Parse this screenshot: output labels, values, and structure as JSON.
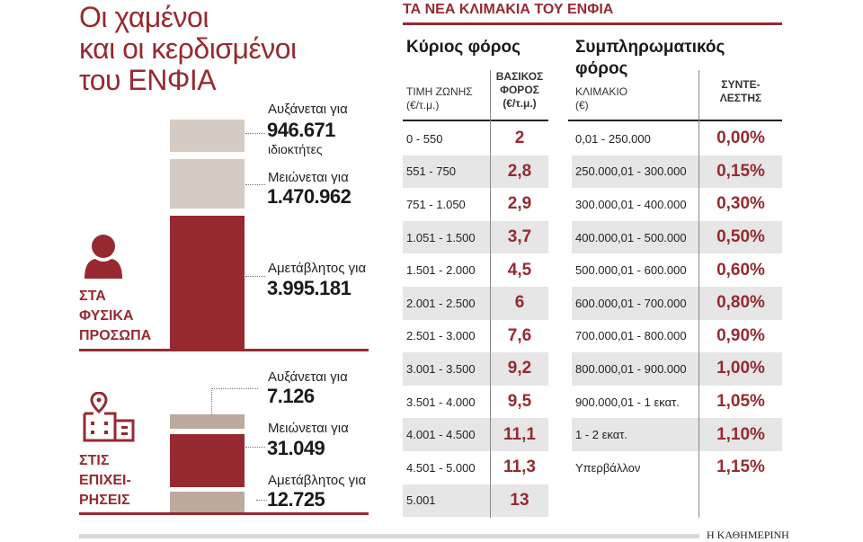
{
  "title": [
    "Οι χαμένοι",
    "και οι κερδισμένοι",
    "του ΕΝΦΙΑ"
  ],
  "colors": {
    "accent": "#962a30",
    "tan": "#d6cbc2",
    "tan_dark": "#bcaa9e"
  },
  "individuals": {
    "group_label": [
      "ΣΤΑ",
      "ΦΥΣΙΚΑ",
      "ΠΡΟΣΩΠΑ"
    ],
    "icon": "person-icon",
    "items": [
      {
        "label": "Αυξάνεται για",
        "value": "946.671",
        "unit": "ιδιοκτήτες"
      },
      {
        "label": "Μειώνεται για",
        "value": "1.470.962"
      },
      {
        "label": "Αμετάβλητος για",
        "value": "3.995.181"
      }
    ]
  },
  "businesses": {
    "group_label": [
      "ΣΤΙΣ",
      "ΕΠΙΧΕΙ-",
      "ΡΗΣΕΙΣ"
    ],
    "icon": "building-location-icon",
    "items": [
      {
        "label": "Αυξάνεται για",
        "value": "7.126"
      },
      {
        "label": "Μειώνεται για",
        "value": "31.049"
      },
      {
        "label": "Αμετάβλητος για",
        "value": "12.725"
      }
    ]
  },
  "brackets": {
    "section_title": "ΤΑ ΝΕΑ ΚΛΙΜΑΚΙΑ ΤΟΥ ΕΝΦΙΑ",
    "main_tax": {
      "title": "Κύριος φόρος",
      "col1": [
        "ΤΙΜΗ ΖΩΝΗΣ",
        "(€/τ.μ.)"
      ],
      "col2": [
        "ΒΑΣΙΚΟΣ",
        "ΦΟΡΟΣ",
        "(€/τ.μ.)"
      ],
      "rows": [
        [
          "0 - 550",
          "2"
        ],
        [
          "551 - 750",
          "2,8"
        ],
        [
          "751 - 1.050",
          "2,9"
        ],
        [
          "1.051 - 1.500",
          "3,7"
        ],
        [
          "1.501 - 2.000",
          "4,5"
        ],
        [
          "2.001 - 2.500",
          "6"
        ],
        [
          "2.501 - 3.000",
          "7,6"
        ],
        [
          "3.001 - 3.500",
          "9,2"
        ],
        [
          "3.501 - 4.000",
          "9,5"
        ],
        [
          "4.001 - 4.500",
          "11,1"
        ],
        [
          "4.501 - 5.000",
          "11,3"
        ],
        [
          "5.001",
          "13"
        ]
      ]
    },
    "supplementary_tax": {
      "title": [
        "Συμπληρωματικός",
        "φόρος"
      ],
      "col1": [
        "ΚΛΙΜΑΚΙΟ",
        "(€)"
      ],
      "col2": [
        "ΣΥΝΤΕ-",
        "ΛΕΣΤΗΣ"
      ],
      "rows": [
        [
          "0,01 - 250.000",
          "0,00%"
        ],
        [
          "250.000,01 - 300.000",
          "0,15%"
        ],
        [
          "300.000,01 - 400.000",
          "0,30%"
        ],
        [
          "400.000,01 - 500.000",
          "0,50%"
        ],
        [
          "500.000,01 - 600.000",
          "0,60%"
        ],
        [
          "600.000,01 - 700.000",
          "0,80%"
        ],
        [
          "700.000,01 - 800.000",
          "0,90%"
        ],
        [
          "800.000,01 - 900.000",
          "1,00%"
        ],
        [
          "900.000,01 - 1 εκατ.",
          "1,05%"
        ],
        [
          "1 - 2 εκατ.",
          "1,10%"
        ],
        [
          "Υπερβάλλον",
          "1,15%"
        ]
      ]
    }
  },
  "footer": {
    "source": "Η ΚΑΘΗΜΕΡΙΝΗ"
  },
  "chart_data": [
    {
      "type": "bar",
      "stacked": true,
      "categories": [
        "Αυξάνεται για",
        "Μειώνεται για",
        "Αμετάβλητος για"
      ],
      "values": [
        946671,
        1470962,
        3995181
      ],
      "group": "ΣΤΑ ΦΥΣΙΚΑ ΠΡΟΣΩΠΑ"
    },
    {
      "type": "bar",
      "stacked": true,
      "categories": [
        "Αυξάνεται για",
        "Μειώνεται για",
        "Αμετάβλητος για"
      ],
      "values": [
        7126,
        31049,
        12725
      ],
      "group": "ΣΤΙΣ ΕΠΙΧΕΙΡΗΣΕΙΣ"
    },
    {
      "type": "table",
      "title": "Κύριος φόρος"
    },
    {
      "type": "table",
      "title": "Συμπληρωματικός φόρος"
    }
  ]
}
